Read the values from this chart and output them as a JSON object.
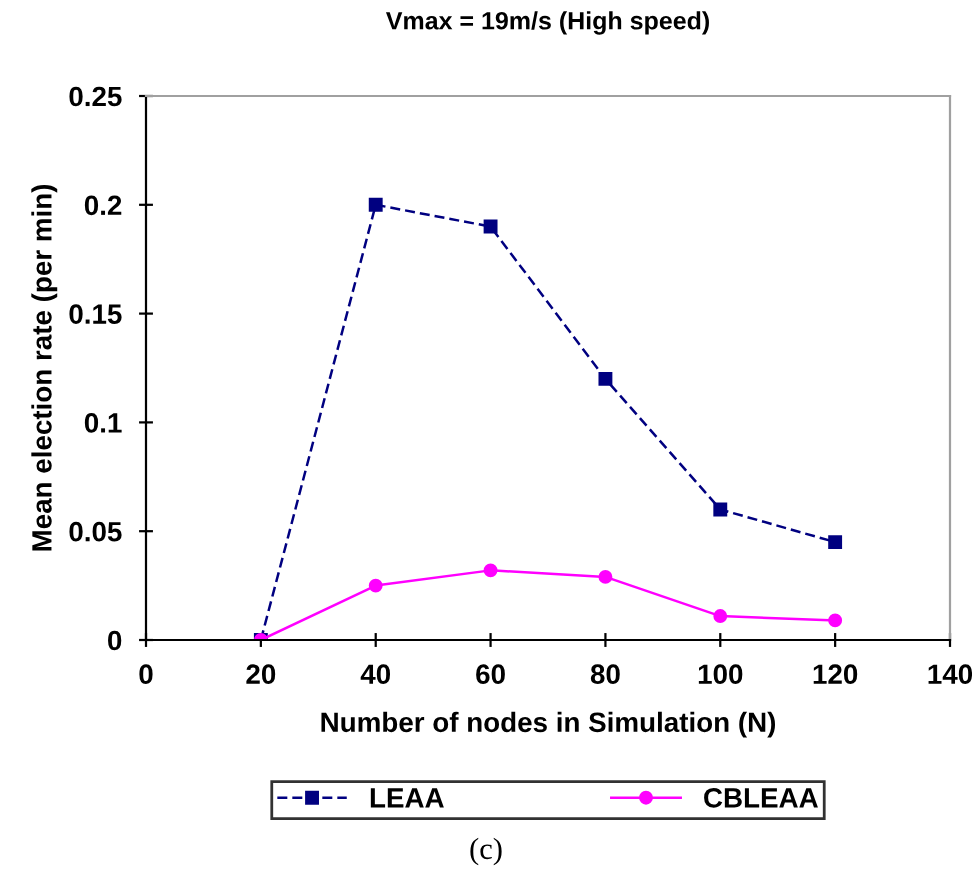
{
  "chart_data": {
    "type": "line",
    "title": "Vmax = 19m/s (High speed)",
    "xlabel": "Number of nodes in Simulation (N)",
    "ylabel": "Mean election rate (per min)",
    "x": [
      20,
      40,
      60,
      80,
      100,
      120
    ],
    "series": [
      {
        "name": "LEAA",
        "color": "#000080",
        "values": [
          0,
          0.2,
          0.19,
          0.12,
          0.06,
          0.045
        ],
        "marker": "square",
        "line_style": "dashed"
      },
      {
        "name": "CBLEAA",
        "color": "#ff00ff",
        "values": [
          0,
          0.025,
          0.032,
          0.029,
          0.011,
          0.009
        ],
        "marker": "circle",
        "line_style": "solid"
      }
    ],
    "xlim": [
      0,
      140
    ],
    "xticks": [
      0,
      20,
      40,
      60,
      80,
      100,
      120,
      140
    ],
    "ylim": [
      0,
      0.25
    ],
    "yticks": [
      0,
      0.05,
      0.1,
      0.15,
      0.2,
      0.25
    ],
    "grid": false,
    "legend": "bottom",
    "annotations": [
      "(c)"
    ]
  }
}
